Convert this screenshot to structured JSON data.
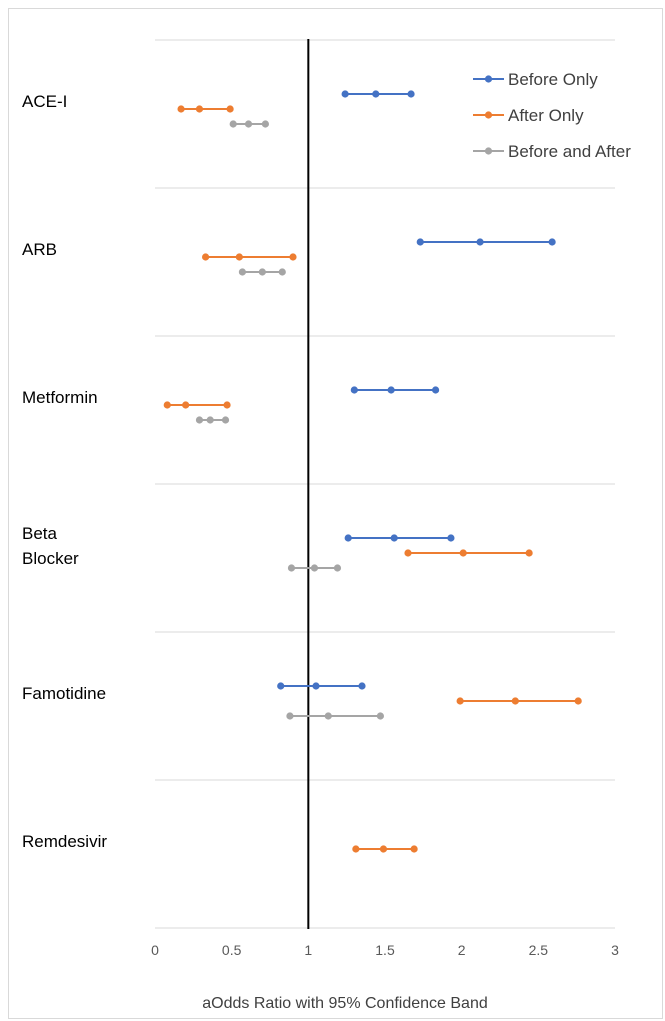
{
  "chart_data": {
    "type": "scatter",
    "title": "",
    "xlabel": "aOdds Ratio with 95% Confidence Band",
    "ylabel": "",
    "xlim": [
      0,
      3
    ],
    "x_ticks": [
      "0",
      "0.5",
      "1",
      "1.5",
      "2",
      "2.5",
      "3"
    ],
    "reference_line_x": 1,
    "legend_position": "top-right",
    "categories": [
      "ACE-I",
      "ARB",
      "Metformin",
      "Beta Blocker",
      "Famotidine",
      "Remdesivir"
    ],
    "category_label_lines": [
      [
        "ACE-I"
      ],
      [
        "ARB"
      ],
      [
        "Metformin"
      ],
      [
        "Beta",
        "Blocker"
      ],
      [
        "Famotidine"
      ],
      [
        "Remdesivir"
      ]
    ],
    "series": [
      {
        "name": "Before Only",
        "color": "#4472C4",
        "points": [
          {
            "category": "ACE-I",
            "lower": 1.24,
            "estimate": 1.44,
            "upper": 1.67
          },
          {
            "category": "ARB",
            "lower": 1.73,
            "estimate": 2.12,
            "upper": 2.59
          },
          {
            "category": "Metformin",
            "lower": 1.3,
            "estimate": 1.54,
            "upper": 1.83
          },
          {
            "category": "Beta Blocker",
            "lower": 1.26,
            "estimate": 1.56,
            "upper": 1.93
          },
          {
            "category": "Famotidine",
            "lower": 0.82,
            "estimate": 1.05,
            "upper": 1.35
          }
        ]
      },
      {
        "name": "After Only",
        "color": "#ED7D31",
        "points": [
          {
            "category": "ACE-I",
            "lower": 0.17,
            "estimate": 0.29,
            "upper": 0.49
          },
          {
            "category": "ARB",
            "lower": 0.33,
            "estimate": 0.55,
            "upper": 0.9
          },
          {
            "category": "Metformin",
            "lower": 0.08,
            "estimate": 0.2,
            "upper": 0.47
          },
          {
            "category": "Beta Blocker",
            "lower": 1.65,
            "estimate": 2.01,
            "upper": 2.44
          },
          {
            "category": "Famotidine",
            "lower": 1.99,
            "estimate": 2.35,
            "upper": 2.76
          },
          {
            "category": "Remdesivir",
            "lower": 1.31,
            "estimate": 1.49,
            "upper": 1.69
          }
        ]
      },
      {
        "name": "Before and After",
        "color": "#A5A5A5",
        "points": [
          {
            "category": "ACE-I",
            "lower": 0.51,
            "estimate": 0.61,
            "upper": 0.72
          },
          {
            "category": "ARB",
            "lower": 0.57,
            "estimate": 0.7,
            "upper": 0.83
          },
          {
            "category": "Metformin",
            "lower": 0.29,
            "estimate": 0.36,
            "upper": 0.46
          },
          {
            "category": "Beta Blocker",
            "lower": 0.89,
            "estimate": 1.04,
            "upper": 1.19
          },
          {
            "category": "Famotidine",
            "lower": 0.88,
            "estimate": 1.13,
            "upper": 1.47
          }
        ]
      }
    ]
  }
}
